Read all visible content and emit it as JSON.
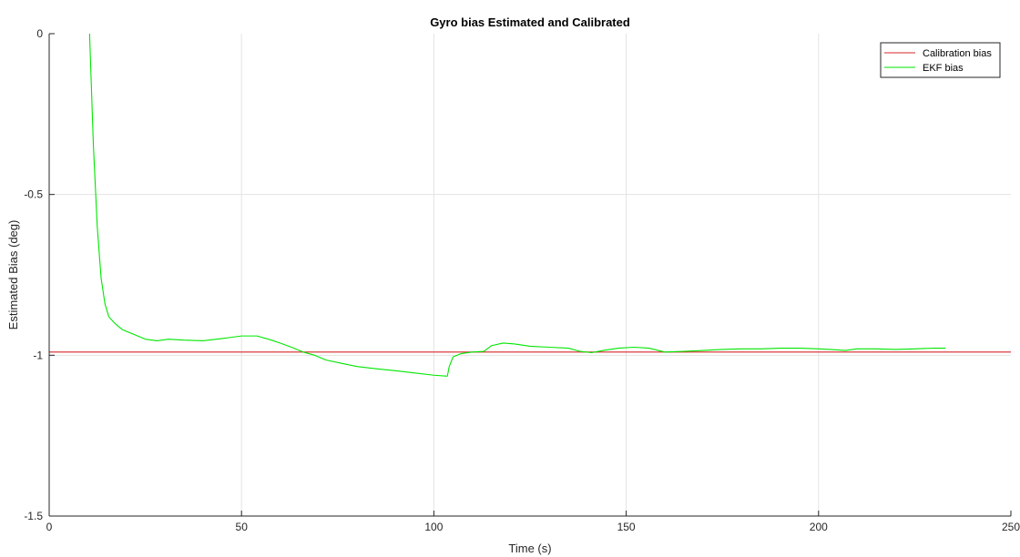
{
  "chart_data": {
    "type": "line",
    "title": "Gyro bias Estimated and Calibrated",
    "xlabel": "Time (s)",
    "ylabel": "Estimated Bias (deg)",
    "xlim": [
      0,
      250
    ],
    "ylim": [
      -1.5,
      0
    ],
    "xticks": [
      0,
      50,
      100,
      150,
      200,
      250
    ],
    "yticks": [
      -1.5,
      -1,
      -0.5,
      0
    ],
    "ytick_labels": [
      "-1.5",
      "-1",
      "-0.5",
      "0"
    ],
    "grid": true,
    "legend_position": "top-right",
    "series": [
      {
        "name": "Calibration bias",
        "color": "#d62728",
        "x": [
          0,
          250
        ],
        "y": [
          -0.99,
          -0.99
        ]
      },
      {
        "name": "EKF bias",
        "color": "#00e600",
        "x": [
          10.5,
          11.5,
          12.5,
          13.5,
          14.5,
          15.5,
          17,
          19,
          22,
          25,
          28,
          31,
          35,
          40,
          45,
          50,
          54,
          57,
          60,
          63,
          66,
          69,
          72,
          76,
          80,
          85,
          90,
          95,
          100,
          103.5,
          104,
          105,
          107,
          110,
          113,
          115,
          118,
          121,
          125,
          130,
          135,
          138,
          141,
          144,
          148,
          152,
          156,
          160,
          165,
          170,
          175,
          180,
          185,
          190,
          195,
          200,
          203,
          207,
          210,
          215,
          220,
          225,
          230,
          233
        ],
        "y": [
          0,
          -0.35,
          -0.6,
          -0.76,
          -0.84,
          -0.88,
          -0.9,
          -0.92,
          -0.935,
          -0.95,
          -0.955,
          -0.95,
          -0.953,
          -0.955,
          -0.948,
          -0.94,
          -0.94,
          -0.95,
          -0.962,
          -0.975,
          -0.99,
          -1.0,
          -1.015,
          -1.025,
          -1.035,
          -1.042,
          -1.048,
          -1.055,
          -1.062,
          -1.065,
          -1.035,
          -1.005,
          -0.995,
          -0.99,
          -0.988,
          -0.97,
          -0.962,
          -0.965,
          -0.972,
          -0.975,
          -0.978,
          -0.988,
          -0.992,
          -0.985,
          -0.978,
          -0.975,
          -0.978,
          -0.99,
          -0.988,
          -0.985,
          -0.982,
          -0.98,
          -0.98,
          -0.978,
          -0.978,
          -0.98,
          -0.982,
          -0.985,
          -0.98,
          -0.98,
          -0.982,
          -0.98,
          -0.978,
          -0.978
        ]
      }
    ]
  }
}
